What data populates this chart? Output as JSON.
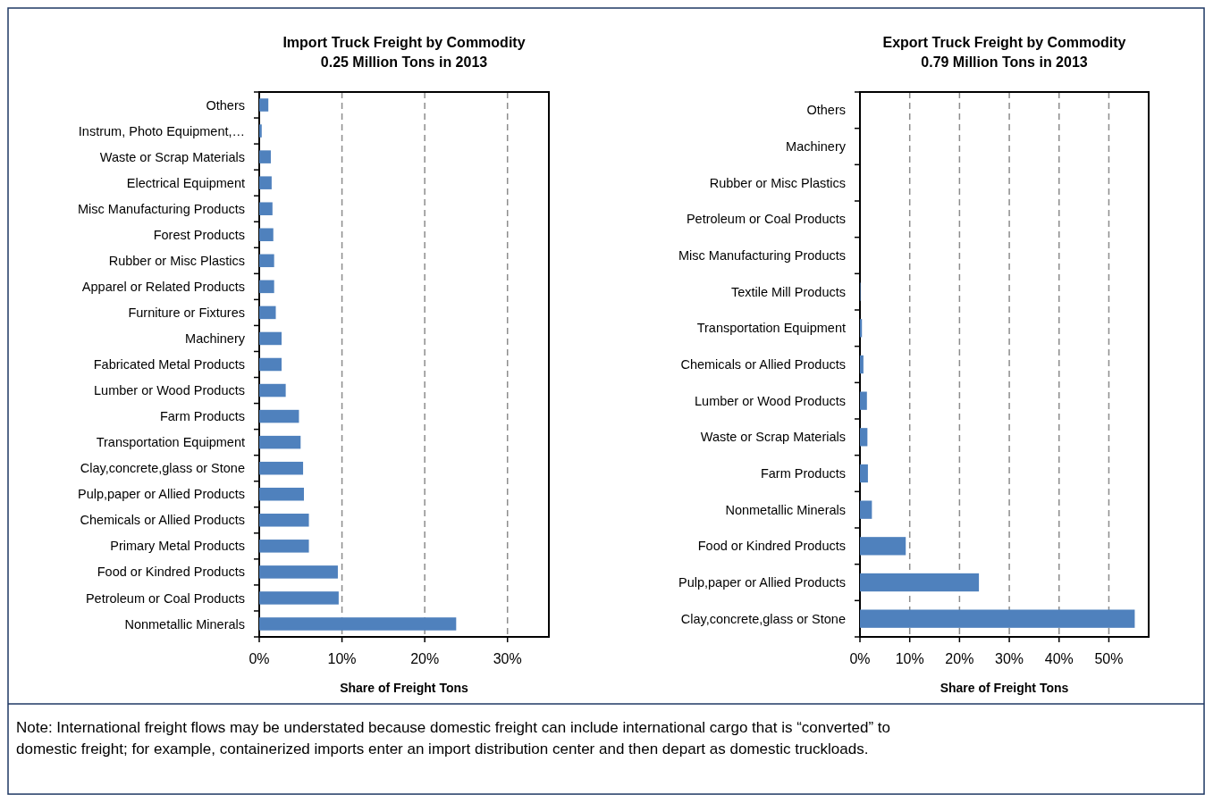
{
  "chart_data": [
    {
      "type": "bar",
      "orientation": "horizontal",
      "title": "Import Truck Freight by Commodity\n0.25 Million Tons in 2013",
      "xlabel": "Share of Freight Tons",
      "categories": [
        "Others",
        "Instrum, Photo Equipment,…",
        "Waste or Scrap Materials",
        "Electrical Equipment",
        "Misc Manufacturing Products",
        "Forest Products",
        "Rubber or Misc Plastics",
        "Apparel or Related Products",
        "Furniture or Fixtures",
        "Machinery",
        "Fabricated Metal Products",
        "Lumber or Wood Products",
        "Farm Products",
        "Transportation Equipment",
        "Clay,concrete,glass or Stone",
        "Pulp,paper or Allied Products",
        "Chemicals or Allied Products",
        "Primary Metal Products",
        "Food or Kindred Products",
        "Petroleum or Coal Products",
        "Nonmetallic Minerals"
      ],
      "values": [
        1.1,
        0.3,
        1.4,
        1.5,
        1.6,
        1.7,
        1.8,
        1.8,
        2.0,
        2.7,
        2.7,
        3.2,
        4.8,
        5.0,
        5.3,
        5.4,
        6.0,
        6.0,
        9.5,
        9.6,
        23.8
      ],
      "color": "#4f81bd",
      "xlim": [
        0,
        35
      ],
      "xticks": [
        {
          "value": 0,
          "label": "0%"
        },
        {
          "value": 10,
          "label": "10%"
        },
        {
          "value": 20,
          "label": "20%"
        },
        {
          "value": 30,
          "label": "30%"
        }
      ],
      "grid": "x"
    },
    {
      "type": "bar",
      "orientation": "horizontal",
      "title": "Export Truck Freight by Commodity\n0.79 Million Tons in 2013",
      "xlabel": "Share of Freight Tons",
      "categories": [
        "Others",
        "Machinery",
        "Rubber or Misc Plastics",
        "Petroleum or Coal Products",
        "Misc Manufacturing Products",
        "Textile Mill Products",
        "Transportation Equipment",
        "Chemicals or Allied Products",
        "Lumber or Wood Products",
        "Waste or Scrap Materials",
        "Farm Products",
        "Nonmetallic Minerals",
        "Food or Kindred Products",
        "Pulp,paper or Allied Products",
        "Clay,concrete,glass or Stone"
      ],
      "values": [
        0,
        0,
        0,
        0,
        0,
        0.1,
        0.4,
        0.7,
        1.4,
        1.5,
        1.6,
        2.4,
        9.2,
        23.9,
        55.2
      ],
      "color": "#4f81bd",
      "xlim": [
        0,
        58
      ],
      "xticks": [
        {
          "value": 0,
          "label": "0%"
        },
        {
          "value": 10,
          "label": "10%"
        },
        {
          "value": 20,
          "label": "20%"
        },
        {
          "value": 30,
          "label": "30%"
        },
        {
          "value": 40,
          "label": "40%"
        },
        {
          "value": 50,
          "label": "50%"
        }
      ],
      "grid": "x",
      "annotations": [
        "Note: International freight flows may be understated because domestic freight can include international cargo that is “converted” to domestic freight; for example, containerized imports enter an import distribution center and then depart as domestic truckloads."
      ]
    }
  ]
}
